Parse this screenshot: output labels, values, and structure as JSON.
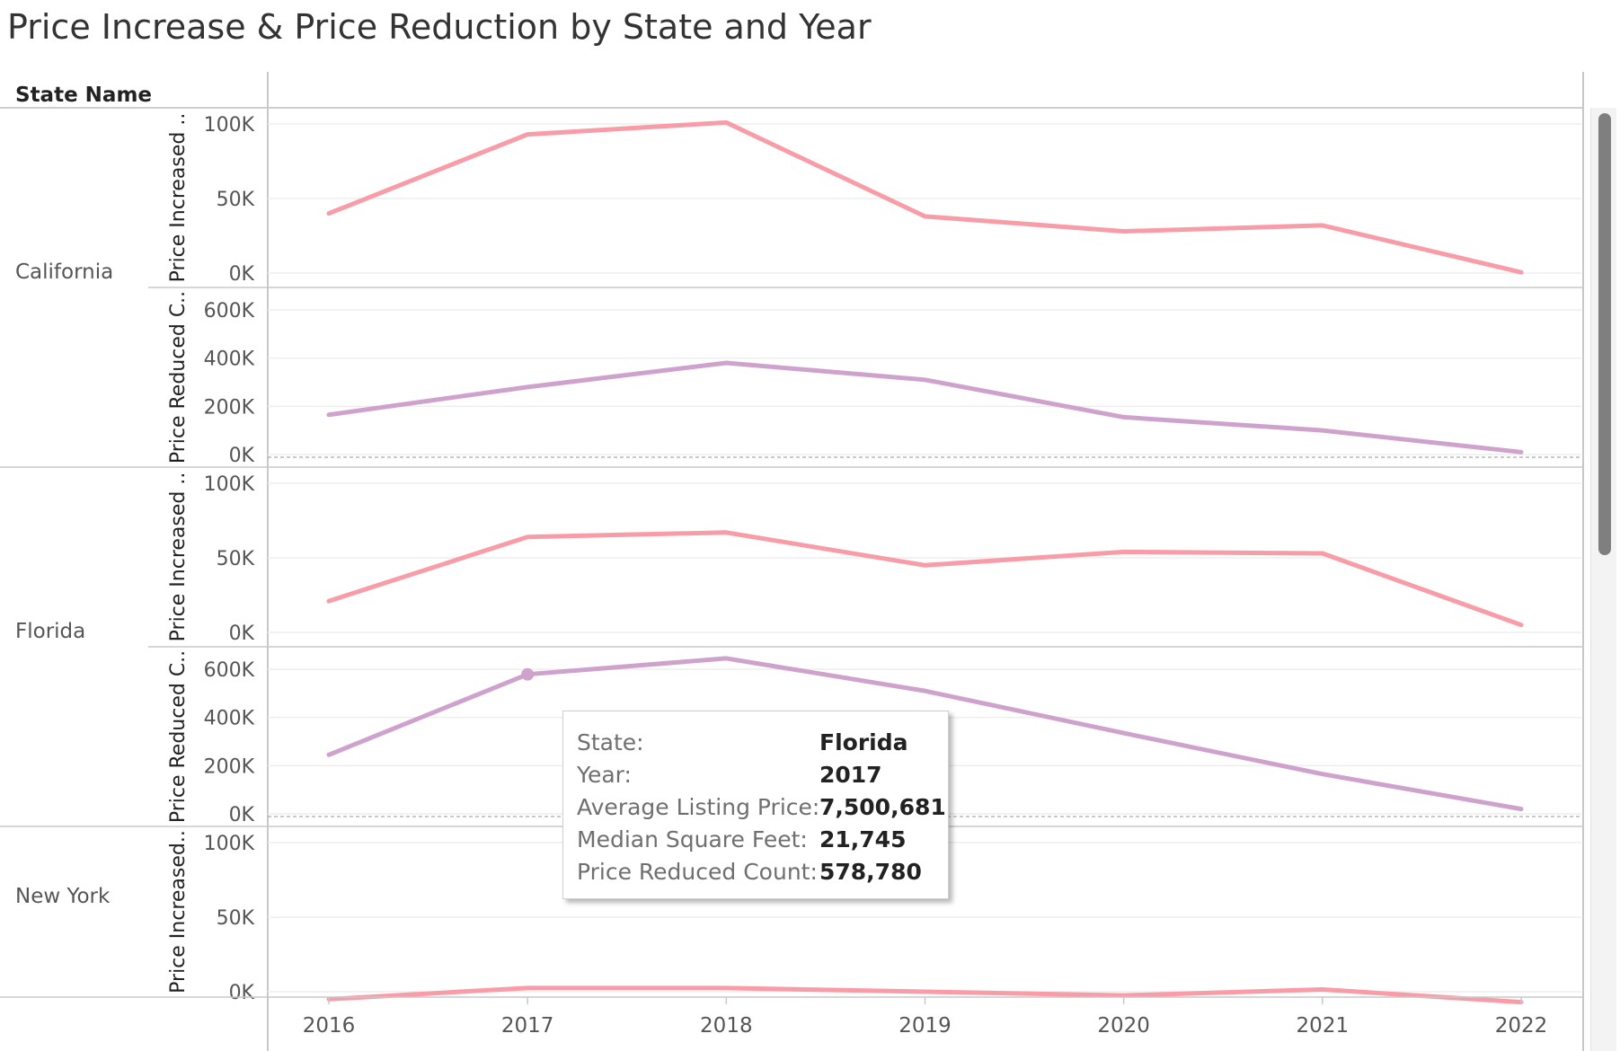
{
  "title": "Price Increase & Price Reduction by State and Year",
  "header": {
    "state_column": "State Name"
  },
  "colors": {
    "increase": "#f89ca7",
    "reduced": "#cfa2cd",
    "grid": "#eeeeee",
    "axis": "#c8c8c8",
    "text": "#555555"
  },
  "chart_data": {
    "type": "line",
    "x": [
      2016,
      2017,
      2018,
      2019,
      2020,
      2021,
      2022
    ],
    "panels": [
      {
        "state": "California",
        "measure": "Price Increased ..",
        "ticks": [
          "100K",
          "50K",
          "0K"
        ],
        "ylim": [
          0,
          100000
        ],
        "values": [
          40000,
          93000,
          101000,
          38000,
          28000,
          32000,
          500
        ]
      },
      {
        "state": "California",
        "measure": "Price Reduced C..",
        "ticks": [
          "600K",
          "400K",
          "200K",
          "0K"
        ],
        "ylim": [
          0,
          600000
        ],
        "values": [
          165000,
          280000,
          380000,
          310000,
          155000,
          100000,
          10000
        ]
      },
      {
        "state": "Florida",
        "measure": "Price Increased ..",
        "ticks": [
          "100K",
          "50K",
          "0K"
        ],
        "ylim": [
          0,
          100000
        ],
        "values": [
          21000,
          64000,
          67000,
          45000,
          54000,
          53000,
          5000
        ]
      },
      {
        "state": "Florida",
        "measure": "Price Reduced C..",
        "ticks": [
          "600K",
          "400K",
          "200K",
          "0K"
        ],
        "ylim": [
          0,
          600000
        ],
        "values": [
          245000,
          578780,
          645000,
          510000,
          335000,
          165000,
          20000
        ]
      },
      {
        "state": "New York",
        "measure": "Price Increased..",
        "ticks": [
          "100K",
          "50K",
          "0K"
        ],
        "ylim": [
          0,
          100000
        ],
        "values": [
          -5000,
          2500,
          2500,
          0,
          -2500,
          1500,
          -7000
        ]
      }
    ],
    "highlight": {
      "panel": 3,
      "index": 1
    }
  },
  "tooltip": [
    {
      "key": "State:",
      "value": "Florida"
    },
    {
      "key": "Year:",
      "value": "2017"
    },
    {
      "key": "Average Listing Price:",
      "value": "7,500,681"
    },
    {
      "key": "Median Square Feet:",
      "value": "21,745"
    },
    {
      "key": "Price Reduced Count:",
      "value": "578,780"
    }
  ]
}
